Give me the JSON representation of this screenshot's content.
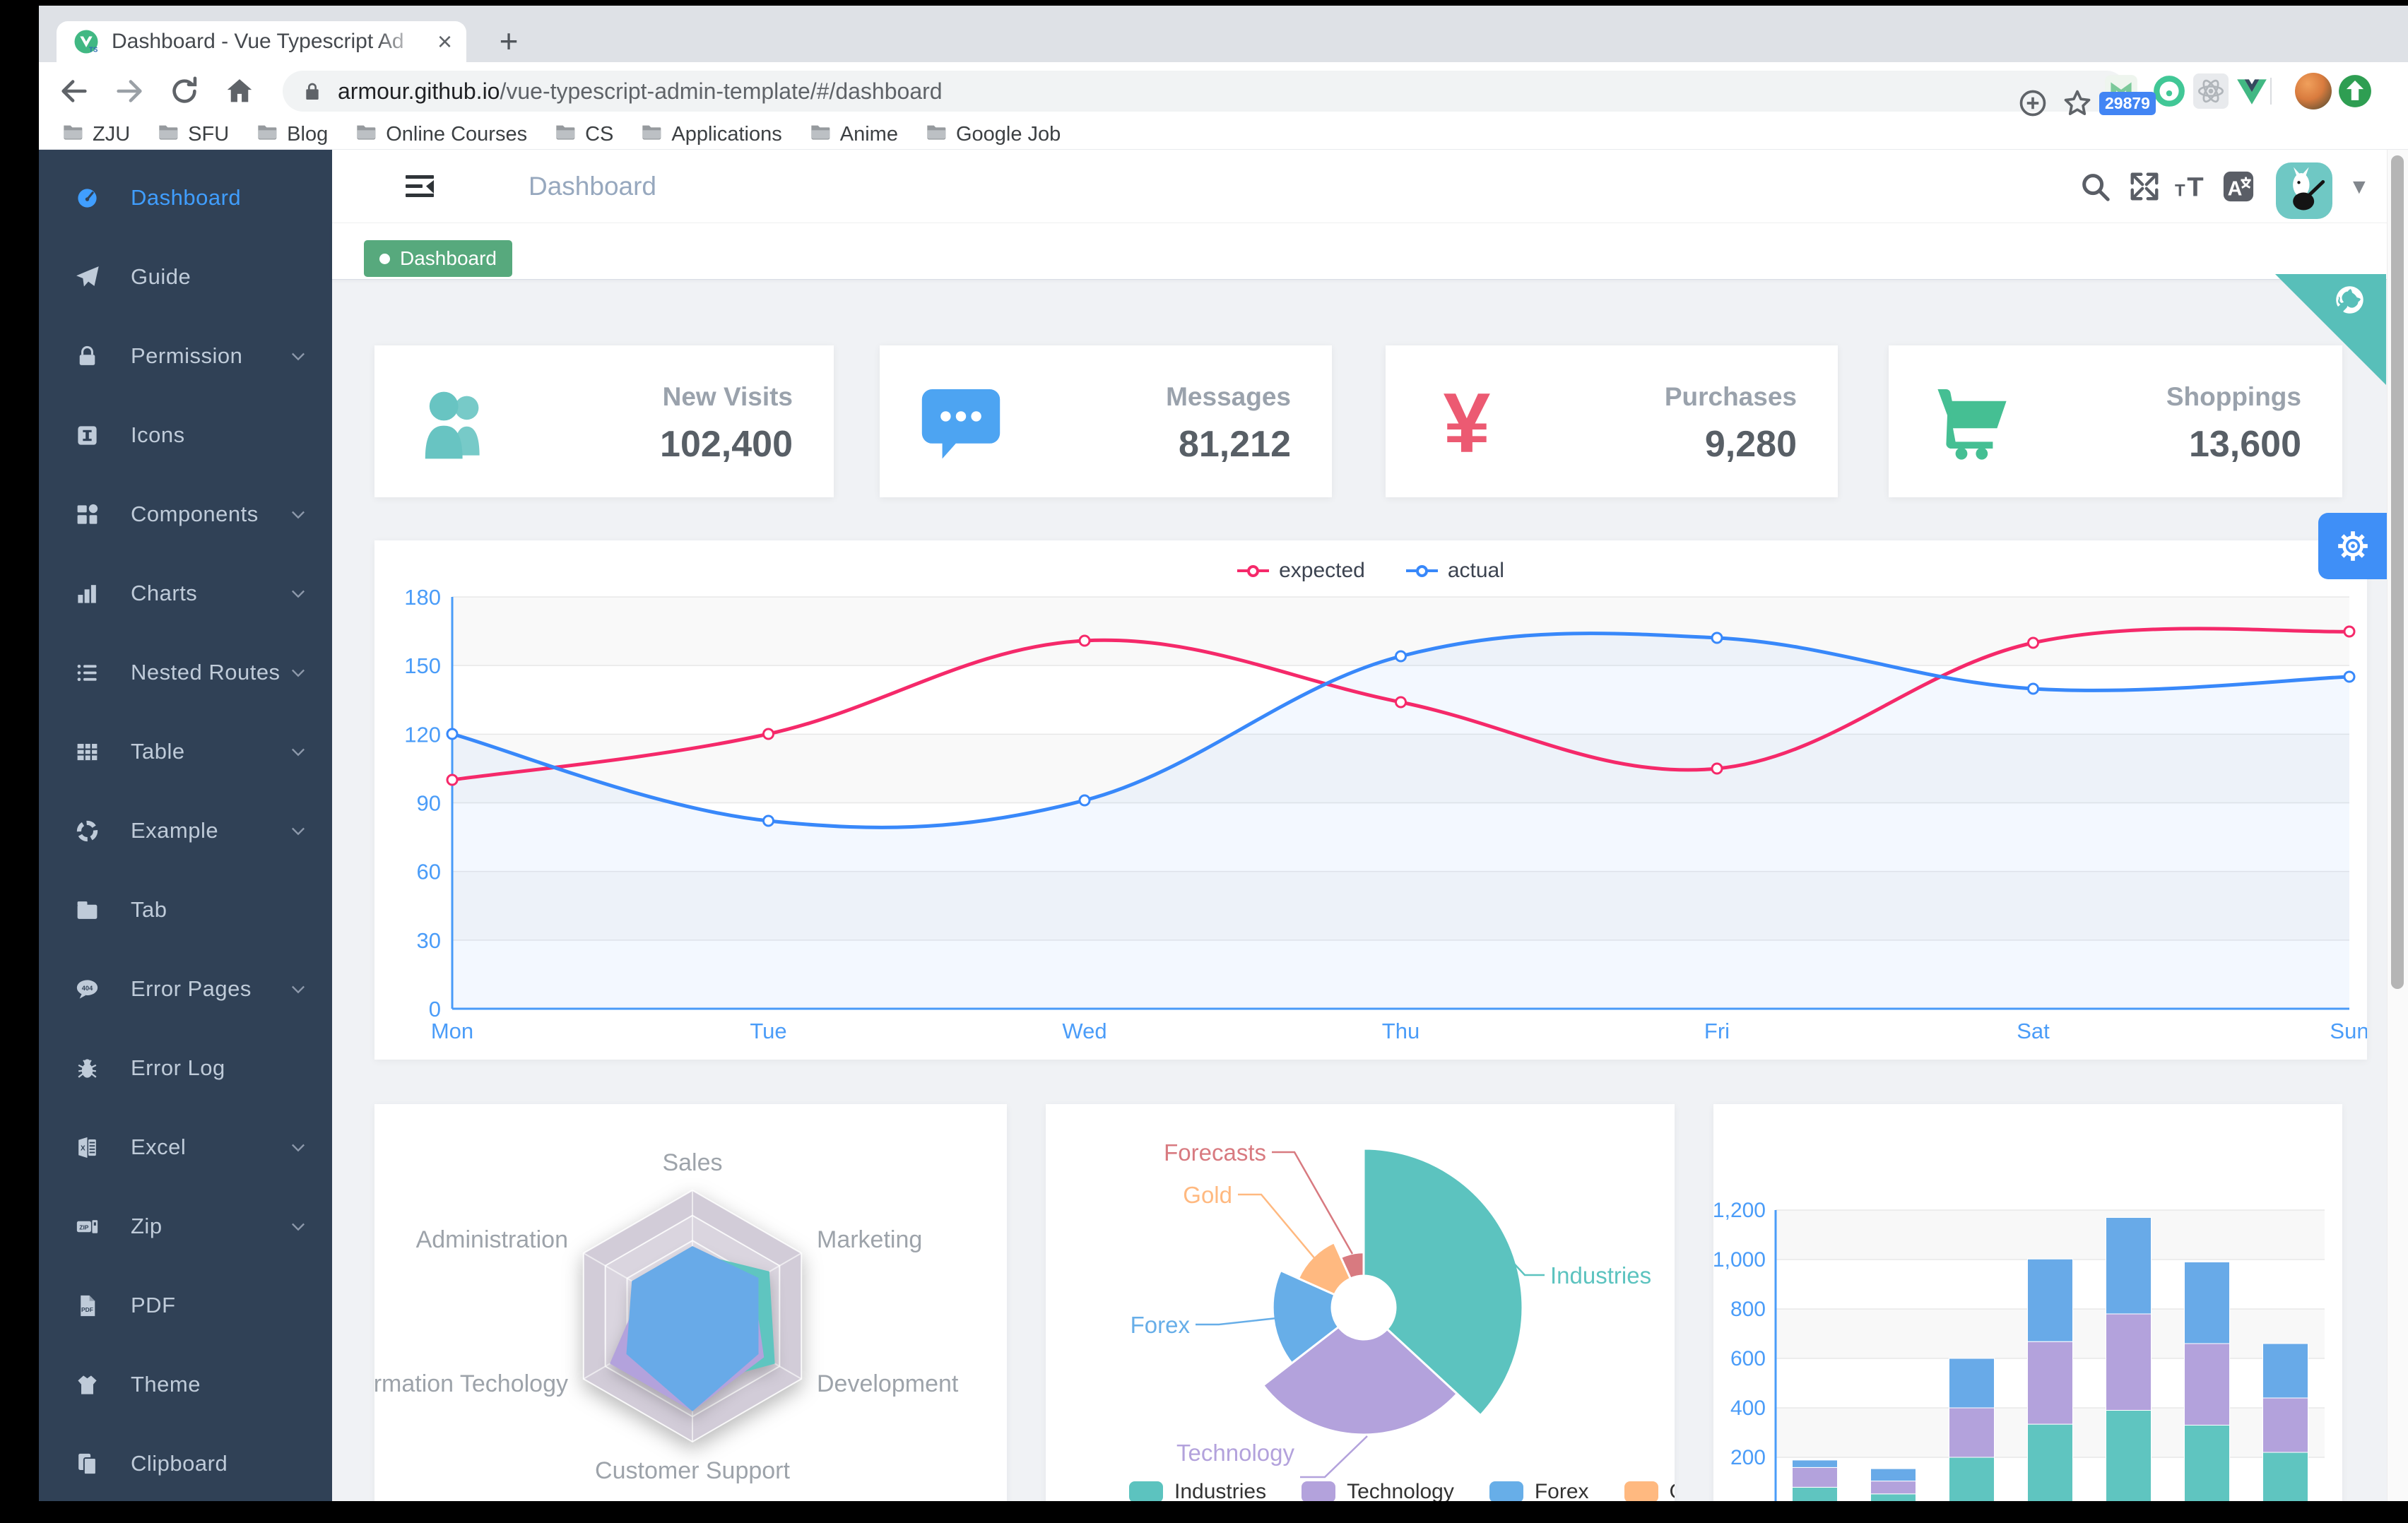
{
  "browser": {
    "tab": {
      "title": "Dashboard - Vue Typescript Ad"
    },
    "url": {
      "host": "armour.github.io",
      "path": "/vue-typescript-admin-template/#/dashboard"
    },
    "extension_badge": "29879",
    "bookmarks": [
      "ZJU",
      "SFU",
      "Blog",
      "Online Courses",
      "CS",
      "Applications",
      "Anime",
      "Google Job"
    ]
  },
  "sidebar": {
    "items": [
      {
        "label": "Dashboard",
        "icon": "dashboard-icon",
        "active": true,
        "chevron": false
      },
      {
        "label": "Guide",
        "icon": "guide-icon",
        "active": false,
        "chevron": false
      },
      {
        "label": "Permission",
        "icon": "lock-icon",
        "active": false,
        "chevron": true
      },
      {
        "label": "Icons",
        "icon": "icon-badge-icon",
        "active": false,
        "chevron": false
      },
      {
        "label": "Components",
        "icon": "components-icon",
        "active": false,
        "chevron": true
      },
      {
        "label": "Charts",
        "icon": "bar-chart-icon",
        "active": false,
        "chevron": true
      },
      {
        "label": "Nested Routes",
        "icon": "nested-routes-icon",
        "active": false,
        "chevron": true
      },
      {
        "label": "Table",
        "icon": "table-icon",
        "active": false,
        "chevron": true
      },
      {
        "label": "Example",
        "icon": "example-icon",
        "active": false,
        "chevron": true
      },
      {
        "label": "Tab",
        "icon": "tab-icon",
        "active": false,
        "chevron": false
      },
      {
        "label": "Error Pages",
        "icon": "error-404-icon",
        "active": false,
        "chevron": true
      },
      {
        "label": "Error Log",
        "icon": "bug-icon",
        "active": false,
        "chevron": false
      },
      {
        "label": "Excel",
        "icon": "excel-icon",
        "active": false,
        "chevron": true
      },
      {
        "label": "Zip",
        "icon": "zip-icon",
        "active": false,
        "chevron": true
      },
      {
        "label": "PDF",
        "icon": "pdf-icon",
        "active": false,
        "chevron": false
      },
      {
        "label": "Theme",
        "icon": "theme-icon",
        "active": false,
        "chevron": false
      },
      {
        "label": "Clipboard",
        "icon": "clipboard-icon",
        "active": false,
        "chevron": false
      }
    ]
  },
  "navbar": {
    "breadcrumb": "Dashboard"
  },
  "tags_view": {
    "tags": [
      {
        "label": "Dashboard",
        "active": true
      }
    ]
  },
  "panel_cards": [
    {
      "title": "New Visits",
      "value": "102,400",
      "icon": "peoples-icon",
      "color": "#68c4c2"
    },
    {
      "title": "Messages",
      "value": "81,212",
      "icon": "message-icon",
      "color": "#4da4f2"
    },
    {
      "title": "Purchases",
      "value": "9,280",
      "icon": "money-icon",
      "color": "#ec5a72"
    },
    {
      "title": "Shoppings",
      "value": "13,600",
      "icon": "shopping-cart-icon",
      "color": "#45bf93"
    }
  ],
  "chart_data": [
    {
      "type": "line",
      "x": [
        "Mon",
        "Tue",
        "Wed",
        "Thu",
        "Fri",
        "Sat",
        "Sun"
      ],
      "series": [
        {
          "name": "expected",
          "color": "#f5296a",
          "values": [
            100,
            120,
            161,
            134,
            105,
            160,
            165
          ]
        },
        {
          "name": "actual",
          "color": "#3888fa",
          "values": [
            120,
            82,
            91,
            154,
            162,
            140,
            145
          ]
        }
      ],
      "ylim": [
        0,
        180
      ],
      "yticks": [
        0,
        30,
        60,
        90,
        120,
        150,
        180
      ],
      "legend_position": "top",
      "grid": true,
      "axis_color": "#4a9cf8"
    },
    {
      "type": "radar",
      "levels": 5,
      "indicators": [
        {
          "name": "Sales",
          "max": 10000
        },
        {
          "name": "Administration",
          "max": 20000
        },
        {
          "name": "Information Techology",
          "max": 20000
        },
        {
          "name": "Customer Support",
          "max": 20000
        },
        {
          "name": "Development",
          "max": 20000
        },
        {
          "name": "Marketing",
          "max": 20000
        }
      ],
      "series": [
        {
          "color": "#5fc5c0",
          "values": [
            5000,
            7000,
            12000,
            11000,
            15000,
            14000
          ]
        },
        {
          "color": "#b3a2dc",
          "values": [
            4000,
            9000,
            15000,
            15000,
            13000,
            11000
          ]
        },
        {
          "color": "#68aae8",
          "values": [
            5500,
            11000,
            12000,
            15000,
            12000,
            12000
          ]
        }
      ]
    },
    {
      "type": "pie",
      "rose": "radius",
      "items": [
        {
          "name": "Industries",
          "value": 320,
          "color": "#5cc3bf"
        },
        {
          "name": "Technology",
          "value": 240,
          "color": "#b3a2dc"
        },
        {
          "name": "Forex",
          "value": 149,
          "color": "#67aee8"
        },
        {
          "name": "Gold",
          "value": 100,
          "color": "#ffb980"
        },
        {
          "name": "Forecasts",
          "value": 59,
          "color": "#d87a80"
        }
      ],
      "legend_position": "bottom"
    },
    {
      "type": "bar",
      "stacked": true,
      "series": [
        {
          "color": "#5fc5c0",
          "values": [
            79,
            52,
            200,
            334,
            390,
            330,
            220
          ]
        },
        {
          "color": "#b3a2dc",
          "values": [
            80,
            52,
            200,
            334,
            390,
            330,
            220
          ]
        },
        {
          "color": "#68aae8",
          "values": [
            30,
            50,
            200,
            334,
            390,
            330,
            220
          ]
        }
      ],
      "ylim": [
        0,
        1200
      ],
      "yticks": [
        200,
        400,
        600,
        800,
        1000,
        1200
      ],
      "ytick_labels": [
        "200",
        "400",
        "600",
        "800",
        "1,000",
        "1,200"
      ],
      "axis_color": "#4a9cf8"
    }
  ]
}
